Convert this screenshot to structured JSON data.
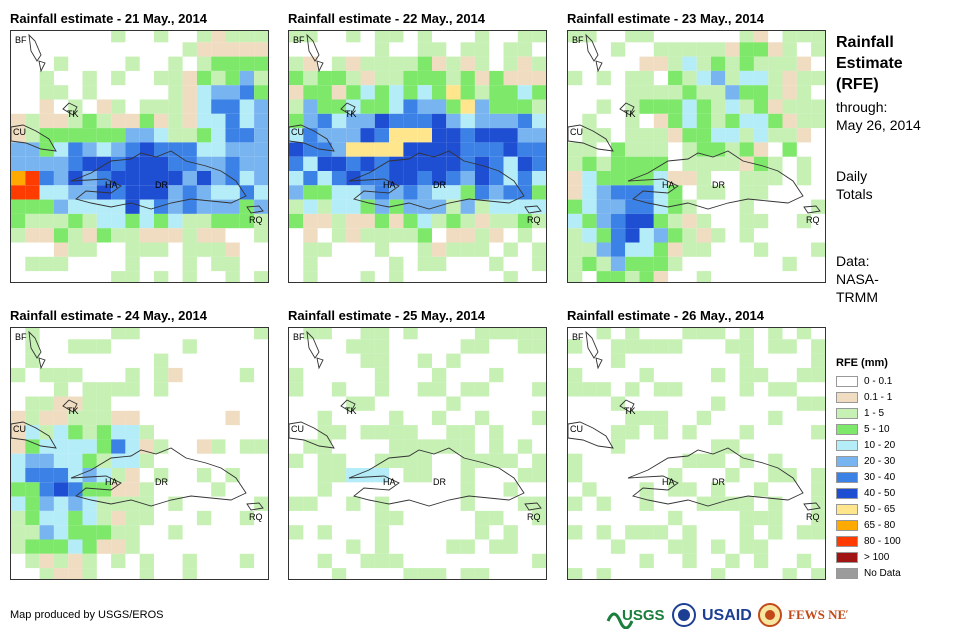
{
  "panels": [
    {
      "title": "Rainfall estimate - 21 May., 2014"
    },
    {
      "title": "Rainfall estimate - 22 May., 2014"
    },
    {
      "title": "Rainfall estimate - 23 May., 2014"
    },
    {
      "title": "Rainfall estimate - 24 May., 2014"
    },
    {
      "title": "Rainfall estimate - 25 May., 2014"
    },
    {
      "title": "Rainfall estimate - 26 May., 2014"
    }
  ],
  "map_labels": {
    "bf": "BF",
    "tk": "TK",
    "cu": "CU",
    "ha": "HA",
    "dr": "DR",
    "rq": "RQ"
  },
  "side": {
    "title_line1": "Rainfall",
    "title_line2": "Estimate",
    "title_line3": "(RFE)",
    "through": "through:",
    "date": "May 26, 2014",
    "totals_line1": "Daily",
    "totals_line2": "Totals",
    "data_line1": "Data:",
    "data_line2": "NASA-",
    "data_line3": "TRMM"
  },
  "legend": {
    "title": "RFE (mm)",
    "items": [
      {
        "label": "0 - 0.1",
        "color": "#ffffff"
      },
      {
        "label": "0.1 - 1",
        "color": "#f0dcc0"
      },
      {
        "label": "1 - 5",
        "color": "#c6f0b4"
      },
      {
        "label": "5 - 10",
        "color": "#7ee86a"
      },
      {
        "label": "10 - 20",
        "color": "#b4ecf8"
      },
      {
        "label": "20 - 30",
        "color": "#78b4f0"
      },
      {
        "label": "30 - 40",
        "color": "#3c82e6"
      },
      {
        "label": "40 - 50",
        "color": "#1e4ed2"
      },
      {
        "label": "50 - 65",
        "color": "#ffe68c"
      },
      {
        "label": "65 - 80",
        "color": "#ffaa00"
      },
      {
        "label": "80 - 100",
        "color": "#ff3c00"
      },
      {
        "label": "> 100",
        "color": "#a01414"
      },
      {
        "label": "No Data",
        "color": "#9b9b9b"
      }
    ]
  },
  "credit": "Map produced by USGS/EROS",
  "logos": {
    "usgs": "USGS",
    "usaid": "USAID",
    "fewsnet": "FEWS NET"
  }
}
